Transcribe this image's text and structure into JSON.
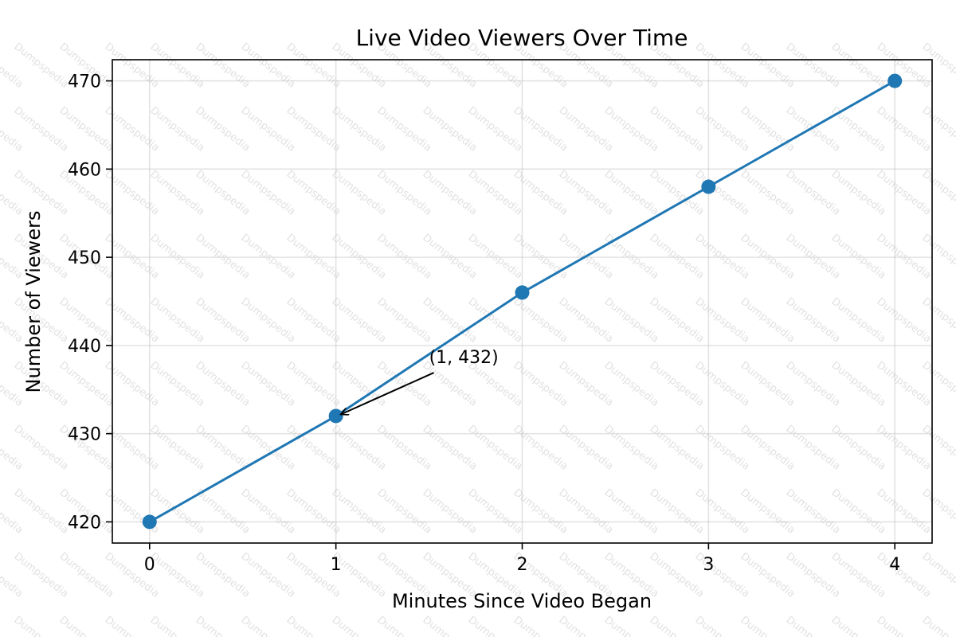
{
  "chart_data": {
    "type": "line",
    "title": "Live Video Viewers Over Time",
    "xlabel": "Minutes Since Video Began",
    "ylabel": "Number of Viewers",
    "x": [
      0,
      1,
      2,
      3,
      4
    ],
    "series": [
      {
        "values": [
          420,
          432,
          446,
          458,
          470
        ]
      }
    ],
    "xlim": [
      -0.2,
      4.2
    ],
    "ylim": [
      417.6,
      472.4
    ],
    "xticks": [
      0,
      1,
      2,
      3,
      4
    ],
    "yticks": [
      420,
      430,
      440,
      450,
      460,
      470
    ],
    "grid": true,
    "line_color": "#1f77b4",
    "annotations": [
      {
        "text": "(1, 432)",
        "x": 1,
        "y": 432,
        "text_x": 1.5,
        "text_y": 438
      }
    ]
  },
  "watermark": {
    "text": "Dumpspedia"
  }
}
